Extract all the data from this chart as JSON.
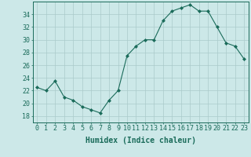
{
  "x": [
    0,
    1,
    2,
    3,
    4,
    5,
    6,
    7,
    8,
    9,
    10,
    11,
    12,
    13,
    14,
    15,
    16,
    17,
    18,
    19,
    20,
    21,
    22,
    23
  ],
  "y": [
    22.5,
    22.0,
    23.5,
    21.0,
    20.5,
    19.5,
    19.0,
    18.5,
    20.5,
    22.0,
    27.5,
    29.0,
    30.0,
    30.0,
    33.0,
    34.5,
    35.0,
    35.5,
    34.5,
    34.5,
    32.0,
    29.5,
    29.0,
    27.0
  ],
  "line_color": "#1a6b5a",
  "marker": "D",
  "marker_size": 2.0,
  "bg_color": "#cce8e8",
  "grid_color": "#aacaca",
  "xlabel": "Humidex (Indice chaleur)",
  "xlabel_fontsize": 7,
  "tick_color": "#1a6b5a",
  "tick_fontsize": 6,
  "ylim": [
    17,
    36
  ],
  "yticks": [
    18,
    20,
    22,
    24,
    26,
    28,
    30,
    32,
    34
  ],
  "xlim": [
    -0.5,
    23.5
  ],
  "xticks": [
    0,
    1,
    2,
    3,
    4,
    5,
    6,
    7,
    8,
    9,
    10,
    11,
    12,
    13,
    14,
    15,
    16,
    17,
    18,
    19,
    20,
    21,
    22,
    23
  ]
}
